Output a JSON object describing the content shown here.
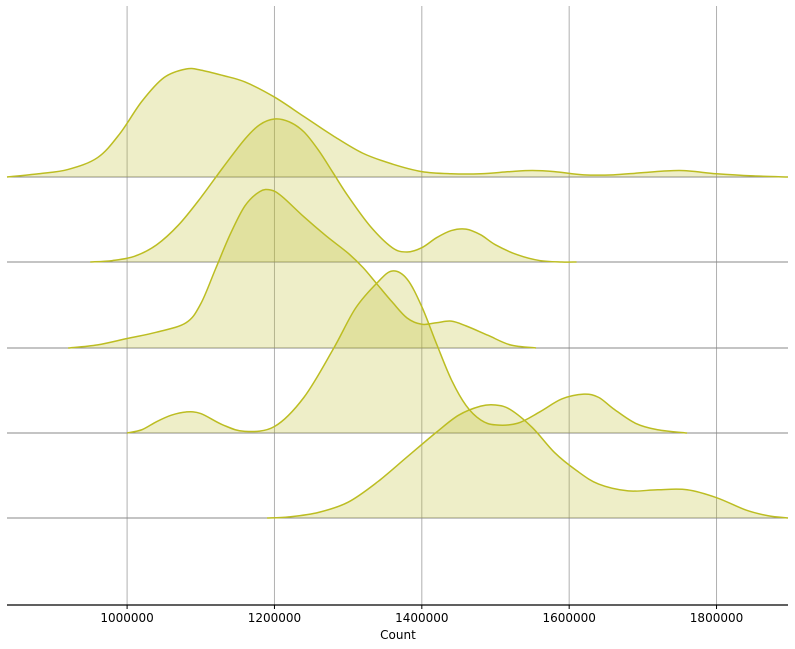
{
  "chart_data": {
    "type": "area",
    "subtype": "ridgeline",
    "title": "",
    "xlabel": "Count",
    "ylabel": "",
    "xlim": [
      837000,
      1897000
    ],
    "xticks": [
      1000000,
      1200000,
      1400000,
      1600000,
      1800000
    ],
    "xtick_labels": [
      "1000000",
      "1200000",
      "1400000",
      "1600000",
      "1800000"
    ],
    "grid": true,
    "legend": "none",
    "colors": {
      "fill": "#bcbd22",
      "fill_opacity": 0.25,
      "line": "#bcbd22",
      "grid": "#b0b0b0",
      "baseline": "#888888",
      "axis": "#000000"
    },
    "series": [
      {
        "x": [
          837000,
          880000,
          920000,
          960000,
          990000,
          1020000,
          1050000,
          1080000,
          1100000,
          1130000,
          1160000,
          1200000,
          1240000,
          1280000,
          1320000,
          1360000,
          1400000,
          1440000,
          1480000,
          1520000,
          1550000,
          1580000,
          1620000,
          1660000,
          1700000,
          1750000,
          1800000,
          1850000,
          1897000
        ],
        "y": [
          0.0,
          0.03,
          0.07,
          0.18,
          0.4,
          0.7,
          0.92,
          1.0,
          0.99,
          0.94,
          0.88,
          0.74,
          0.56,
          0.38,
          0.22,
          0.12,
          0.05,
          0.03,
          0.03,
          0.05,
          0.06,
          0.05,
          0.02,
          0.02,
          0.04,
          0.06,
          0.03,
          0.01,
          0.0
        ]
      },
      {
        "x": [
          950000,
          980000,
          1010000,
          1040000,
          1070000,
          1100000,
          1130000,
          1160000,
          1180000,
          1200000,
          1220000,
          1240000,
          1260000,
          1280000,
          1300000,
          1330000,
          1360000,
          1380000,
          1400000,
          1420000,
          1440000,
          1460000,
          1480000,
          1500000,
          1530000,
          1560000,
          1590000,
          1610000
        ],
        "y": [
          0.0,
          0.01,
          0.04,
          0.12,
          0.26,
          0.45,
          0.66,
          0.86,
          0.96,
          1.0,
          0.98,
          0.91,
          0.78,
          0.62,
          0.46,
          0.25,
          0.1,
          0.07,
          0.1,
          0.17,
          0.22,
          0.23,
          0.19,
          0.12,
          0.05,
          0.01,
          0.0,
          0.0
        ]
      },
      {
        "x": [
          920000,
          960000,
          1000000,
          1040000,
          1080000,
          1100000,
          1120000,
          1140000,
          1160000,
          1180000,
          1195000,
          1210000,
          1240000,
          1270000,
          1300000,
          1320000,
          1340000,
          1360000,
          1380000,
          1400000,
          1420000,
          1440000,
          1460000,
          1490000,
          1520000,
          1555000
        ],
        "y": [
          0.0,
          0.02,
          0.06,
          0.1,
          0.16,
          0.28,
          0.5,
          0.72,
          0.9,
          0.99,
          1.0,
          0.96,
          0.83,
          0.71,
          0.6,
          0.51,
          0.4,
          0.29,
          0.19,
          0.15,
          0.16,
          0.17,
          0.14,
          0.08,
          0.02,
          0.0
        ]
      },
      {
        "x": [
          1000000,
          1020000,
          1040000,
          1060000,
          1080000,
          1100000,
          1130000,
          1160000,
          1200000,
          1240000,
          1280000,
          1310000,
          1340000,
          1360000,
          1380000,
          1400000,
          1420000,
          1440000,
          1460000,
          1480000,
          1500000,
          1530000,
          1560000,
          1590000,
          1620000,
          1640000,
          1660000,
          1690000,
          1720000,
          1760000
        ],
        "y": [
          0.0,
          0.02,
          0.07,
          0.11,
          0.13,
          0.12,
          0.05,
          0.01,
          0.04,
          0.22,
          0.52,
          0.77,
          0.93,
          1.0,
          0.95,
          0.78,
          0.55,
          0.33,
          0.17,
          0.08,
          0.05,
          0.06,
          0.13,
          0.21,
          0.24,
          0.22,
          0.15,
          0.06,
          0.02,
          0.0
        ]
      },
      {
        "x": [
          1190000,
          1220000,
          1260000,
          1300000,
          1340000,
          1380000,
          1420000,
          1450000,
          1480000,
          1500000,
          1520000,
          1550000,
          1580000,
          1610000,
          1640000,
          1680000,
          1720000,
          1760000,
          1800000,
          1840000,
          1870000,
          1897000
        ],
        "y": [
          0.0,
          0.01,
          0.05,
          0.14,
          0.32,
          0.54,
          0.76,
          0.91,
          0.99,
          1.0,
          0.96,
          0.8,
          0.58,
          0.42,
          0.3,
          0.24,
          0.25,
          0.25,
          0.18,
          0.07,
          0.02,
          0.0
        ]
      }
    ]
  }
}
